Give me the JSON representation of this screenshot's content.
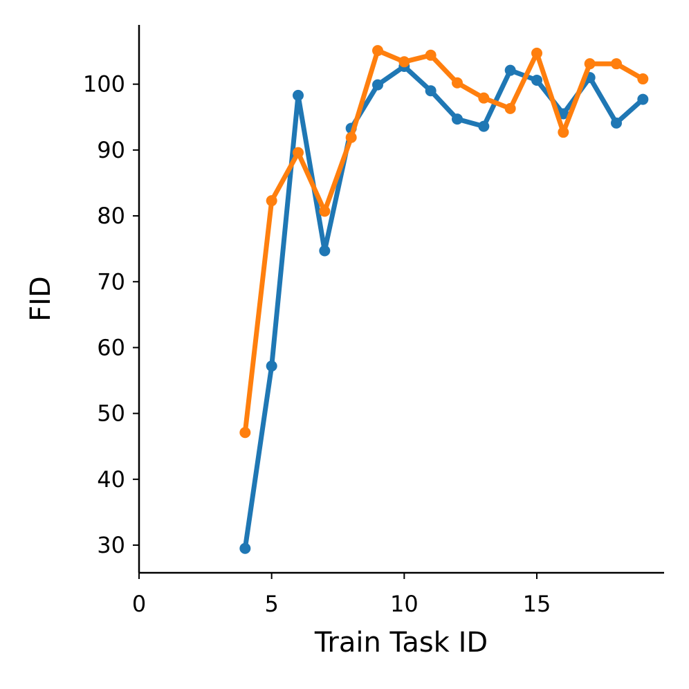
{
  "chart_data": {
    "type": "line",
    "title": "",
    "xlabel": "Train Task ID",
    "ylabel": "FID",
    "xlim": [
      0,
      19.8
    ],
    "ylim": [
      25.8,
      109
    ],
    "xticks": [
      0,
      5,
      10,
      15
    ],
    "yticks": [
      30,
      40,
      50,
      60,
      70,
      80,
      90,
      100
    ],
    "grid": false,
    "legend": "none",
    "x": [
      4,
      5,
      6,
      7,
      8,
      9,
      10,
      11,
      12,
      13,
      14,
      15,
      16,
      17,
      18,
      19
    ],
    "series": [
      {
        "color": "#1f77b4",
        "values": [
          29.5,
          57.2,
          98.3,
          74.7,
          93.3,
          99.9,
          102.7,
          99.0,
          94.7,
          93.6,
          102.1,
          100.6,
          95.5,
          101.0,
          94.1,
          97.7
        ]
      },
      {
        "color": "#ff7f0e",
        "values": [
          47.1,
          82.3,
          89.6,
          80.7,
          91.9,
          105.1,
          103.4,
          104.4,
          100.2,
          97.9,
          96.3,
          104.7,
          92.7,
          103.1,
          103.1,
          100.8
        ]
      }
    ]
  }
}
